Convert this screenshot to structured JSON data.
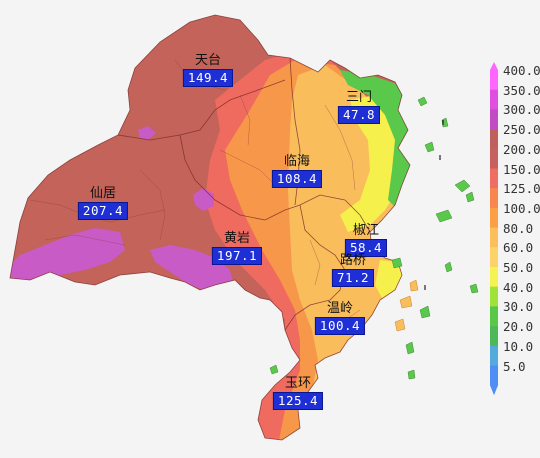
{
  "stations": [
    {
      "name": "天台",
      "value": "149.4"
    },
    {
      "name": "三门",
      "value": "47.8"
    },
    {
      "name": "临海",
      "value": "108.4"
    },
    {
      "name": "仙居",
      "value": "207.4"
    },
    {
      "name": "黄岩",
      "value": "197.1"
    },
    {
      "name": "椒江",
      "value": "58.4"
    },
    {
      "name": "路桥",
      "value": "71.2"
    },
    {
      "name": "温岭",
      "value": "100.4"
    },
    {
      "name": "玉环",
      "value": "125.4"
    }
  ],
  "legend": {
    "labels": [
      "400.0",
      "350.0",
      "300.0",
      "250.0",
      "200.0",
      "150.0",
      "125.0",
      "100.0",
      "80.0",
      "60.0",
      "50.0",
      "40.0",
      "30.0",
      "20.0",
      "10.0",
      "5.0"
    ],
    "colors": [
      "#ff66ff",
      "#e050e0",
      "#c24ac2",
      "#c0605c",
      "#c86060",
      "#ef6e64",
      "#f7874f",
      "#fca048",
      "#fcc05a",
      "#fbd36a",
      "#f3f351",
      "#9ee23a",
      "#58c846",
      "#4db85a",
      "#55aadd",
      "#4f8ff5"
    ]
  },
  "colors": {
    "heavy": "#c36359",
    "purple": "#c95bc7",
    "red": "#ef6b5f",
    "orange": "#f7974a",
    "lightorange": "#f9bd5c",
    "yellow": "#f5f04c",
    "green": "#5ac84b",
    "background": "#f4f4f4"
  }
}
